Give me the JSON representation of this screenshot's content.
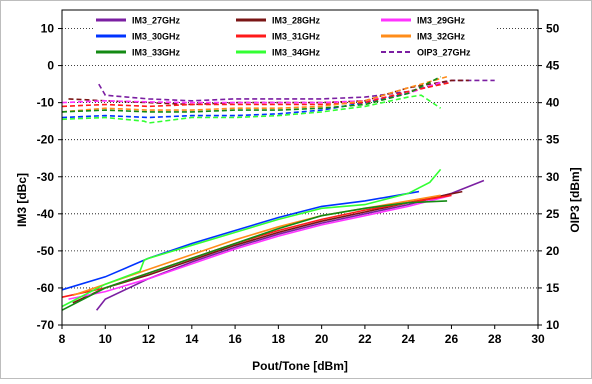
{
  "chart_data": {
    "type": "line",
    "xlabel": "Pout/Tone [dBm]",
    "ylabel": "IM3 [dBc]",
    "y2label": "OIP3 [dBm]",
    "xlim": [
      8,
      30
    ],
    "ylim": [
      -70,
      15
    ],
    "y2lim": [
      10,
      52.5
    ],
    "x_ticks": [
      8,
      10,
      12,
      14,
      16,
      18,
      20,
      22,
      24,
      26,
      28,
      30
    ],
    "y_ticks": [
      -70,
      -60,
      -50,
      -40,
      -30,
      -20,
      -10,
      0,
      10
    ],
    "y2_ticks": [
      10,
      15,
      20,
      25,
      30,
      35,
      40,
      45,
      50
    ],
    "grid": "horizontal dotted",
    "legend_position": "top",
    "colors": {
      "27GHz": "#7b1fa2",
      "28GHz": "#7a1515",
      "29GHz": "#ff33ff",
      "30GHz": "#0033ff",
      "31GHz": "#ff1a1a",
      "32GHz": "#ff8c1a",
      "33GHz": "#138a13",
      "34GHz": "#33ff33"
    },
    "legend": [
      {
        "label": "IM3_27GHz",
        "color": "#7b1fa2",
        "dash": false
      },
      {
        "label": "IM3_28GHz",
        "color": "#7a1515",
        "dash": false
      },
      {
        "label": "IM3_29GHz",
        "color": "#ff33ff",
        "dash": false
      },
      {
        "label": "IM3_30GHz",
        "color": "#0033ff",
        "dash": false
      },
      {
        "label": "IM3_31GHz",
        "color": "#ff1a1a",
        "dash": false
      },
      {
        "label": "IM3_32GHz",
        "color": "#ff8c1a",
        "dash": false
      },
      {
        "label": "IM3_33GHz",
        "color": "#138a13",
        "dash": false
      },
      {
        "label": "IM3_34GHz",
        "color": "#33ff33",
        "dash": false
      },
      {
        "label": "OIP3_27GHz",
        "color": "#7b1fa2",
        "dash": true
      }
    ],
    "im3_series": [
      {
        "color": "#7b1fa2",
        "x": [
          9.6,
          10,
          12,
          14,
          16,
          18,
          20,
          22,
          24,
          26,
          27.5
        ],
        "y": [
          -66,
          -63,
          -57.5,
          -53,
          -49,
          -45.5,
          -42.5,
          -40,
          -37.5,
          -34.5,
          -31
        ]
      },
      {
        "color": "#7a1515",
        "x": [
          8.5,
          10,
          12,
          14,
          16,
          18,
          20,
          22,
          24,
          26.5
        ],
        "y": [
          -64,
          -60,
          -56.5,
          -52.5,
          -48.5,
          -45,
          -42,
          -39.5,
          -37,
          -34
        ]
      },
      {
        "color": "#ff33ff",
        "x": [
          8.3,
          10,
          12,
          14,
          16,
          18,
          20,
          22,
          24,
          26
        ],
        "y": [
          -63,
          -61,
          -57.5,
          -53.5,
          -49.5,
          -46,
          -43,
          -40.5,
          -38,
          -35
        ]
      },
      {
        "color": "#0033ff",
        "x": [
          8,
          10,
          12,
          14,
          16,
          18,
          20,
          22,
          24.5
        ],
        "y": [
          -60.5,
          -57,
          -52,
          -48,
          -44.5,
          -41,
          -38,
          -36.5,
          -34
        ]
      },
      {
        "color": "#ff1a1a",
        "x": [
          8,
          10,
          12,
          14,
          16,
          18,
          20,
          22,
          24,
          26
        ],
        "y": [
          -62.5,
          -60,
          -56,
          -52,
          -48,
          -44.5,
          -41.5,
          -39,
          -37,
          -35
        ]
      },
      {
        "color": "#ff8c1a",
        "x": [
          8.5,
          10,
          12,
          14,
          16,
          18,
          20,
          22,
          24,
          25.5
        ],
        "y": [
          -62,
          -59,
          -55,
          -51,
          -47,
          -43.5,
          -40.5,
          -38.5,
          -36.5,
          -35
        ]
      },
      {
        "color": "#138a13",
        "x": [
          8,
          10,
          12,
          14,
          16,
          18,
          20,
          22,
          24,
          25.8
        ],
        "y": [
          -66,
          -60,
          -56,
          -52,
          -48,
          -44,
          -40.5,
          -38.5,
          -37,
          -36.5
        ]
      },
      {
        "color": "#33ff33",
        "x": [
          8,
          10,
          11.6,
          11.8,
          12,
          14,
          16,
          18,
          20,
          22,
          24,
          25,
          25.5
        ],
        "y": [
          -65,
          -59,
          -55.5,
          -52.5,
          -52,
          -48.5,
          -45,
          -41.5,
          -38.5,
          -37.5,
          -34.5,
          -31.5,
          -28
        ]
      }
    ],
    "oip3_series": [
      {
        "color": "#7b1fa2",
        "x": [
          9.7,
          10,
          12,
          14,
          16,
          18,
          20,
          22,
          24,
          26,
          28
        ],
        "y": [
          -5,
          -8,
          -9,
          -9.5,
          -9,
          -9,
          -9,
          -8.5,
          -7,
          -4,
          -4
        ]
      },
      {
        "color": "#7a1515",
        "x": [
          8.3,
          10,
          12,
          14,
          16,
          18,
          20,
          22,
          24,
          26,
          26.8
        ],
        "y": [
          -9,
          -9.5,
          -10,
          -10.5,
          -10,
          -10,
          -10,
          -9.5,
          -6,
          -4,
          -4
        ]
      },
      {
        "color": "#ff33ff",
        "x": [
          8,
          10,
          12,
          14,
          16,
          18,
          20,
          22,
          24,
          25.5
        ],
        "y": [
          -10,
          -9.5,
          -9.8,
          -10,
          -10,
          -10,
          -10,
          -9.5,
          -7.5,
          -4.5
        ]
      },
      {
        "color": "#0033ff",
        "x": [
          8,
          10,
          12,
          14,
          16,
          18,
          20,
          22,
          24
        ],
        "y": [
          -14,
          -13.5,
          -14,
          -13.5,
          -13.5,
          -13,
          -12,
          -10,
          -7.5
        ]
      },
      {
        "color": "#ff1a1a",
        "x": [
          8,
          10,
          12,
          14,
          16,
          18,
          20,
          22,
          24,
          26
        ],
        "y": [
          -11,
          -10.5,
          -11,
          -10.5,
          -10.5,
          -10.5,
          -10.5,
          -10,
          -7,
          -4.5
        ]
      },
      {
        "color": "#ff8c1a",
        "x": [
          8,
          10,
          12,
          14,
          16,
          18,
          20,
          22,
          24,
          25.8
        ],
        "y": [
          -12.5,
          -11.5,
          -12,
          -12,
          -11.5,
          -11.5,
          -11,
          -9.5,
          -6,
          -3
        ]
      },
      {
        "color": "#138a13",
        "x": [
          8,
          10,
          12,
          14,
          16,
          18,
          20,
          22,
          24,
          25.5
        ],
        "y": [
          -12.5,
          -12,
          -12.5,
          -12.5,
          -12,
          -12,
          -11.5,
          -10.5,
          -7.5,
          -3
        ]
      },
      {
        "color": "#33ff33",
        "x": [
          8,
          10,
          11.8,
          12,
          14,
          16,
          18,
          20,
          22,
          24,
          24.6,
          25.5
        ],
        "y": [
          -14.5,
          -14,
          -15,
          -15.5,
          -14,
          -14,
          -13.5,
          -12.5,
          -11,
          -8.5,
          -8,
          -11.5
        ]
      }
    ]
  }
}
